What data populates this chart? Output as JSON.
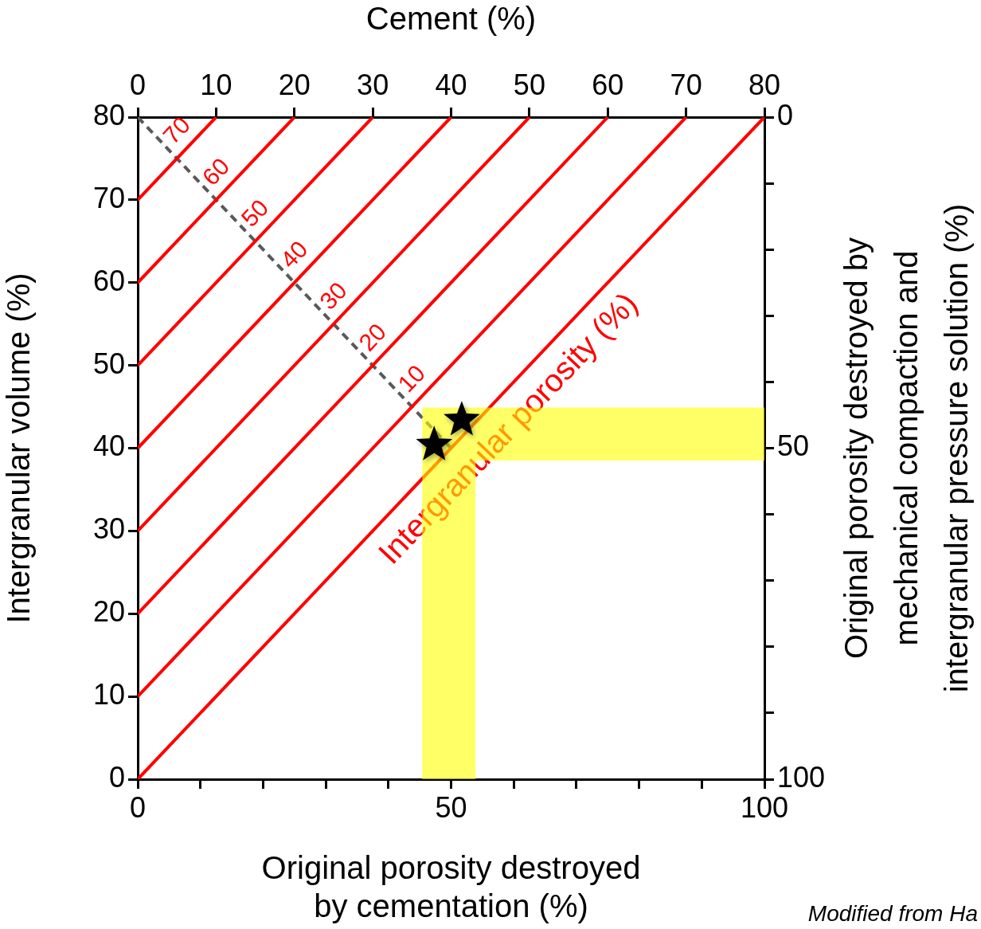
{
  "chart_data": {
    "type": "line",
    "xlabel": "Original porosity destroyed\nby cementation (%)",
    "x2label": "Cement (%)",
    "ylabel": "Intergranular volume (%)",
    "y2label": "Original porosity destroyed by\nmechanical compaction and\nintergranular pressure solution (%)",
    "xlim": [
      0,
      100
    ],
    "xticks": [
      0,
      {
        "value": 10,
        "label": null
      },
      {
        "value": 20,
        "label": null
      },
      {
        "value": 30,
        "label": null
      },
      {
        "value": 40,
        "label": null
      },
      50,
      {
        "value": 60,
        "label": null
      },
      {
        "value": 70,
        "label": null
      },
      {
        "value": 80,
        "label": null
      },
      {
        "value": 90,
        "label": null
      },
      100
    ],
    "x2lim": [
      0,
      80
    ],
    "x2ticks": [
      0,
      10,
      20,
      30,
      40,
      50,
      60,
      70,
      80
    ],
    "ylim": [
      0,
      80
    ],
    "yticks": [
      0,
      10,
      20,
      30,
      40,
      50,
      60,
      70,
      80
    ],
    "y2lim": [
      100,
      0
    ],
    "y2ticks": [
      0,
      {
        "value": 10,
        "label": null
      },
      {
        "value": 20,
        "label": null
      },
      {
        "value": 30,
        "label": null
      },
      {
        "value": 40,
        "label": null
      },
      50,
      {
        "value": 60,
        "label": null
      },
      {
        "value": 70,
        "label": null
      },
      {
        "value": 80,
        "label": null
      },
      {
        "value": 90,
        "label": null
      },
      100
    ],
    "series": [
      {
        "color": "#ff0000",
        "x": [
          0,
          100
        ],
        "values": [
          0,
          80
        ]
      },
      {
        "name": "10",
        "color": "#ff0000",
        "x": [
          0,
          87.5
        ],
        "values": [
          10,
          80
        ]
      },
      {
        "name": "20",
        "color": "#ff0000",
        "x": [
          0,
          75
        ],
        "values": [
          20,
          80
        ]
      },
      {
        "name": "30",
        "color": "#ff0000",
        "x": [
          0,
          62.5
        ],
        "values": [
          30,
          80
        ]
      },
      {
        "name": "40",
        "color": "#ff0000",
        "x": [
          0,
          50
        ],
        "values": [
          40,
          80
        ]
      },
      {
        "name": "50",
        "color": "#ff0000",
        "x": [
          0,
          37.5
        ],
        "values": [
          50,
          80
        ]
      },
      {
        "name": "60",
        "color": "#ff0000",
        "x": [
          0,
          25
        ],
        "values": [
          60,
          80
        ]
      },
      {
        "name": "70",
        "color": "#ff0000",
        "x": [
          0,
          12.5
        ],
        "values": [
          70,
          80
        ]
      },
      {
        "color": "#595959",
        "line_style": "dashed",
        "x": [
          0,
          50
        ],
        "values": [
          80,
          40
        ]
      },
      {
        "type": "scatter",
        "marker": "star",
        "color": "#000000",
        "x": [
          47.3,
          51.7
        ],
        "values": [
          40.4,
          43.4
        ]
      }
    ],
    "bands": [
      {
        "axis": "x",
        "from": 45.4,
        "to": 53.9,
        "color": "#ffff00"
      },
      {
        "axis": "y",
        "from": 38.5,
        "to": 44.9,
        "color": "#ffff00"
      }
    ],
    "annotations": [
      "Intergranular porosity (%)",
      "Modified from Ha"
    ],
    "grid": false,
    "legend": false
  }
}
